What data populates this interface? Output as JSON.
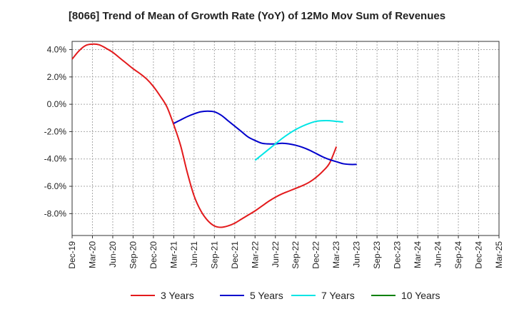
{
  "chart_data": {
    "type": "line",
    "title": "[8066]  Trend of Mean of Growth Rate (YoY) of 12Mo Mov Sum of Revenues",
    "xlabel": "",
    "ylabel": "",
    "ylim": [
      -9.6,
      4.6
    ],
    "y_ticks": [
      4.0,
      2.0,
      0.0,
      -2.0,
      -4.0,
      -6.0,
      -8.0
    ],
    "y_tick_labels": [
      "4.0%",
      "2.0%",
      "0.0%",
      "-2.0%",
      "-4.0%",
      "-6.0%",
      "-8.0%"
    ],
    "x_tick_labels": [
      "Dec-19",
      "Mar-20",
      "Jun-20",
      "Sep-20",
      "Dec-20",
      "Mar-21",
      "Jun-21",
      "Sep-21",
      "Dec-21",
      "Mar-22",
      "Jun-22",
      "Sep-22",
      "Dec-22",
      "Mar-23",
      "Jun-23",
      "Sep-23",
      "Dec-23",
      "Mar-24",
      "Jun-24",
      "Sep-24",
      "Dec-24",
      "Mar-25"
    ],
    "grid": true,
    "legend_position": "bottom",
    "series": [
      {
        "name": "3 Years",
        "color": "#e31a1c",
        "start_index": 0,
        "values": [
          3.3,
          3.9,
          4.3,
          4.4,
          4.35,
          4.1,
          3.8,
          3.4,
          3.0,
          2.6,
          2.25,
          1.85,
          1.3,
          0.6,
          -0.2,
          -1.5,
          -3.0,
          -5.0,
          -6.7,
          -7.8,
          -8.5,
          -8.9,
          -9.0,
          -8.9,
          -8.7,
          -8.4,
          -8.1,
          -7.8,
          -7.45,
          -7.1,
          -6.8,
          -6.55,
          -6.35,
          -6.15,
          -5.95,
          -5.7,
          -5.35,
          -4.9,
          -4.3,
          -3.1
        ]
      },
      {
        "name": "5 Years",
        "color": "#0000cc",
        "start_index": 15,
        "values": [
          -1.4,
          -1.15,
          -0.9,
          -0.7,
          -0.55,
          -0.5,
          -0.55,
          -0.8,
          -1.2,
          -1.6,
          -2.0,
          -2.4,
          -2.65,
          -2.85,
          -2.9,
          -2.9,
          -2.85,
          -2.9,
          -3.0,
          -3.15,
          -3.35,
          -3.6,
          -3.85,
          -4.05,
          -4.2,
          -4.35,
          -4.4,
          -4.4
        ]
      },
      {
        "name": "7 Years",
        "color": "#00e5e5",
        "start_index": 27,
        "values": [
          -4.1,
          -3.7,
          -3.3,
          -2.9,
          -2.5,
          -2.15,
          -1.85,
          -1.6,
          -1.4,
          -1.25,
          -1.2,
          -1.2,
          -1.25,
          -1.3
        ]
      },
      {
        "name": "10 Years",
        "color": "#008000",
        "start_index": 0,
        "values": []
      }
    ]
  }
}
